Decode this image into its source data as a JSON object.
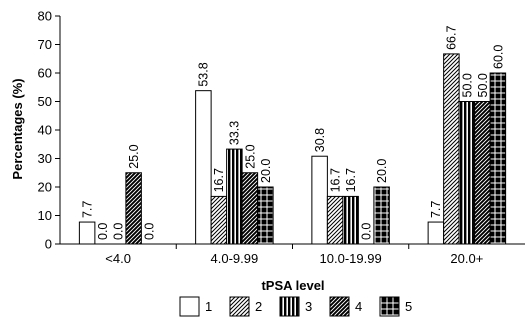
{
  "chart_data": {
    "type": "bar",
    "title": "",
    "xlabel": "tPSA level",
    "ylabel": "Percentages (%)",
    "ylim": [
      0,
      80
    ],
    "yticks": [
      0,
      10,
      20,
      30,
      40,
      50,
      60,
      70,
      80
    ],
    "grid": false,
    "legend_position": "bottom",
    "categories": [
      "<4.0",
      "4.0-9.99",
      "10.0-19.99",
      "20.0+"
    ],
    "series": [
      {
        "name": "1",
        "pattern": "empty",
        "values": [
          7.7,
          53.8,
          30.8,
          7.7
        ],
        "labels": [
          "7.7",
          "53.8",
          "30.8",
          "7.7"
        ]
      },
      {
        "name": "2",
        "pattern": "diagonal-thin",
        "values": [
          0.0,
          16.7,
          16.7,
          66.7
        ],
        "labels": [
          "0.0",
          "16.7",
          "16.7",
          "66.7"
        ]
      },
      {
        "name": "3",
        "pattern": "vertical-stripes",
        "values": [
          0.0,
          33.3,
          16.7,
          50.0
        ],
        "labels": [
          "0.0",
          "33.3",
          "16.7",
          "50.0"
        ]
      },
      {
        "name": "4",
        "pattern": "diagonal-thick",
        "values": [
          25.0,
          25.0,
          0.0,
          50.0
        ],
        "labels": [
          "25.0",
          "25.0",
          "0.0",
          "50.0"
        ]
      },
      {
        "name": "5",
        "pattern": "grid-black",
        "values": [
          0.0,
          20.0,
          20.0,
          60.0
        ],
        "labels": [
          "0.0",
          "20.0",
          "20.0",
          "60.0"
        ]
      }
    ]
  }
}
